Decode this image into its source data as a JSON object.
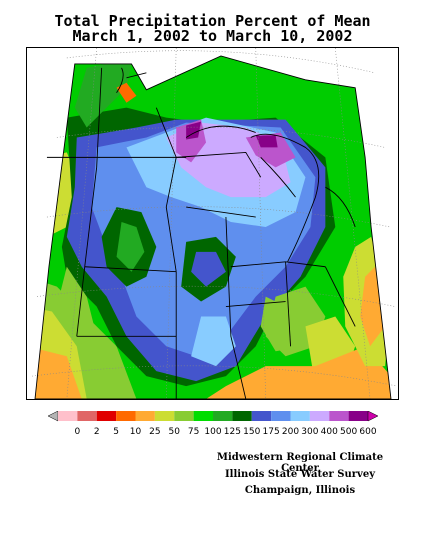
{
  "title_line1": "Total Precipitation Percent of Mean",
  "title_line2": "March 1, 2002 to March 10, 2002",
  "legend": {
    "labels": [
      "0",
      "2",
      "5",
      "10",
      "25",
      "50",
      "75",
      "100",
      "125",
      "150",
      "175",
      "200",
      "300",
      "400",
      "500",
      "600"
    ],
    "colors": [
      "#b4b4b4",
      "#ffc0cb",
      "#e06666",
      "#e00000",
      "#ff6a00",
      "#ffaa33",
      "#ccdd33",
      "#88cc33",
      "#00dd00",
      "#22aa22",
      "#006600",
      "#4455cc",
      "#5f8fee",
      "#88ccff",
      "#ccaaff",
      "#bb55cc",
      "#880088",
      "#cc00aa"
    ]
  },
  "credits": {
    "line1": "Midwestern Regional Climate Center",
    "line2": "Illinois State Water Survey",
    "line3": "Champaign, Illinois"
  }
}
